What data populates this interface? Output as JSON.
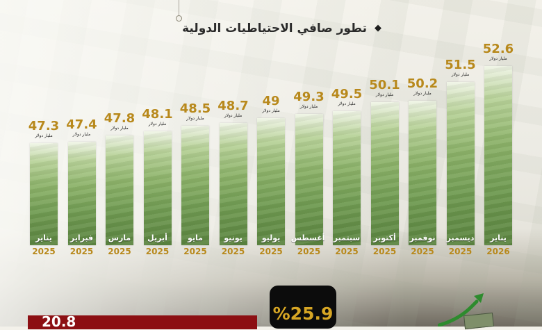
{
  "title": "تطور صافي الاحتياطيات الدولية",
  "unit_label": "مليار دولار",
  "bottom": {
    "percent": "%25.9",
    "figure": "20.8"
  },
  "chart_data": {
    "type": "bar",
    "title": "تطور صافي الاحتياطيات الدولية",
    "categories": [
      "يناير",
      "فبراير",
      "مارس",
      "أبريل",
      "مايو",
      "يونيو",
      "يوليو",
      "أغسطس",
      "سبتمبر",
      "أكتوبر",
      "نوفمبر",
      "ديسمبر",
      "يناير"
    ],
    "years": [
      "2025",
      "2025",
      "2025",
      "2025",
      "2025",
      "2025",
      "2025",
      "2025",
      "2025",
      "2025",
      "2025",
      "2025",
      "2026"
    ],
    "values": [
      47.3,
      47.4,
      47.8,
      48.1,
      48.5,
      48.7,
      49,
      49.3,
      49.5,
      50.1,
      50.2,
      51.5,
      52.6
    ],
    "value_labels": [
      "47.3",
      "47.4",
      "47.8",
      "48.1",
      "48.5",
      "48.7",
      "49",
      "49.3",
      "49.5",
      "50.1",
      "50.2",
      "51.5",
      "52.6"
    ],
    "unit": "مليار دولار",
    "colors": {
      "value": "#b8891c",
      "year": "#b8891c",
      "bar": "#8db36a"
    }
  }
}
